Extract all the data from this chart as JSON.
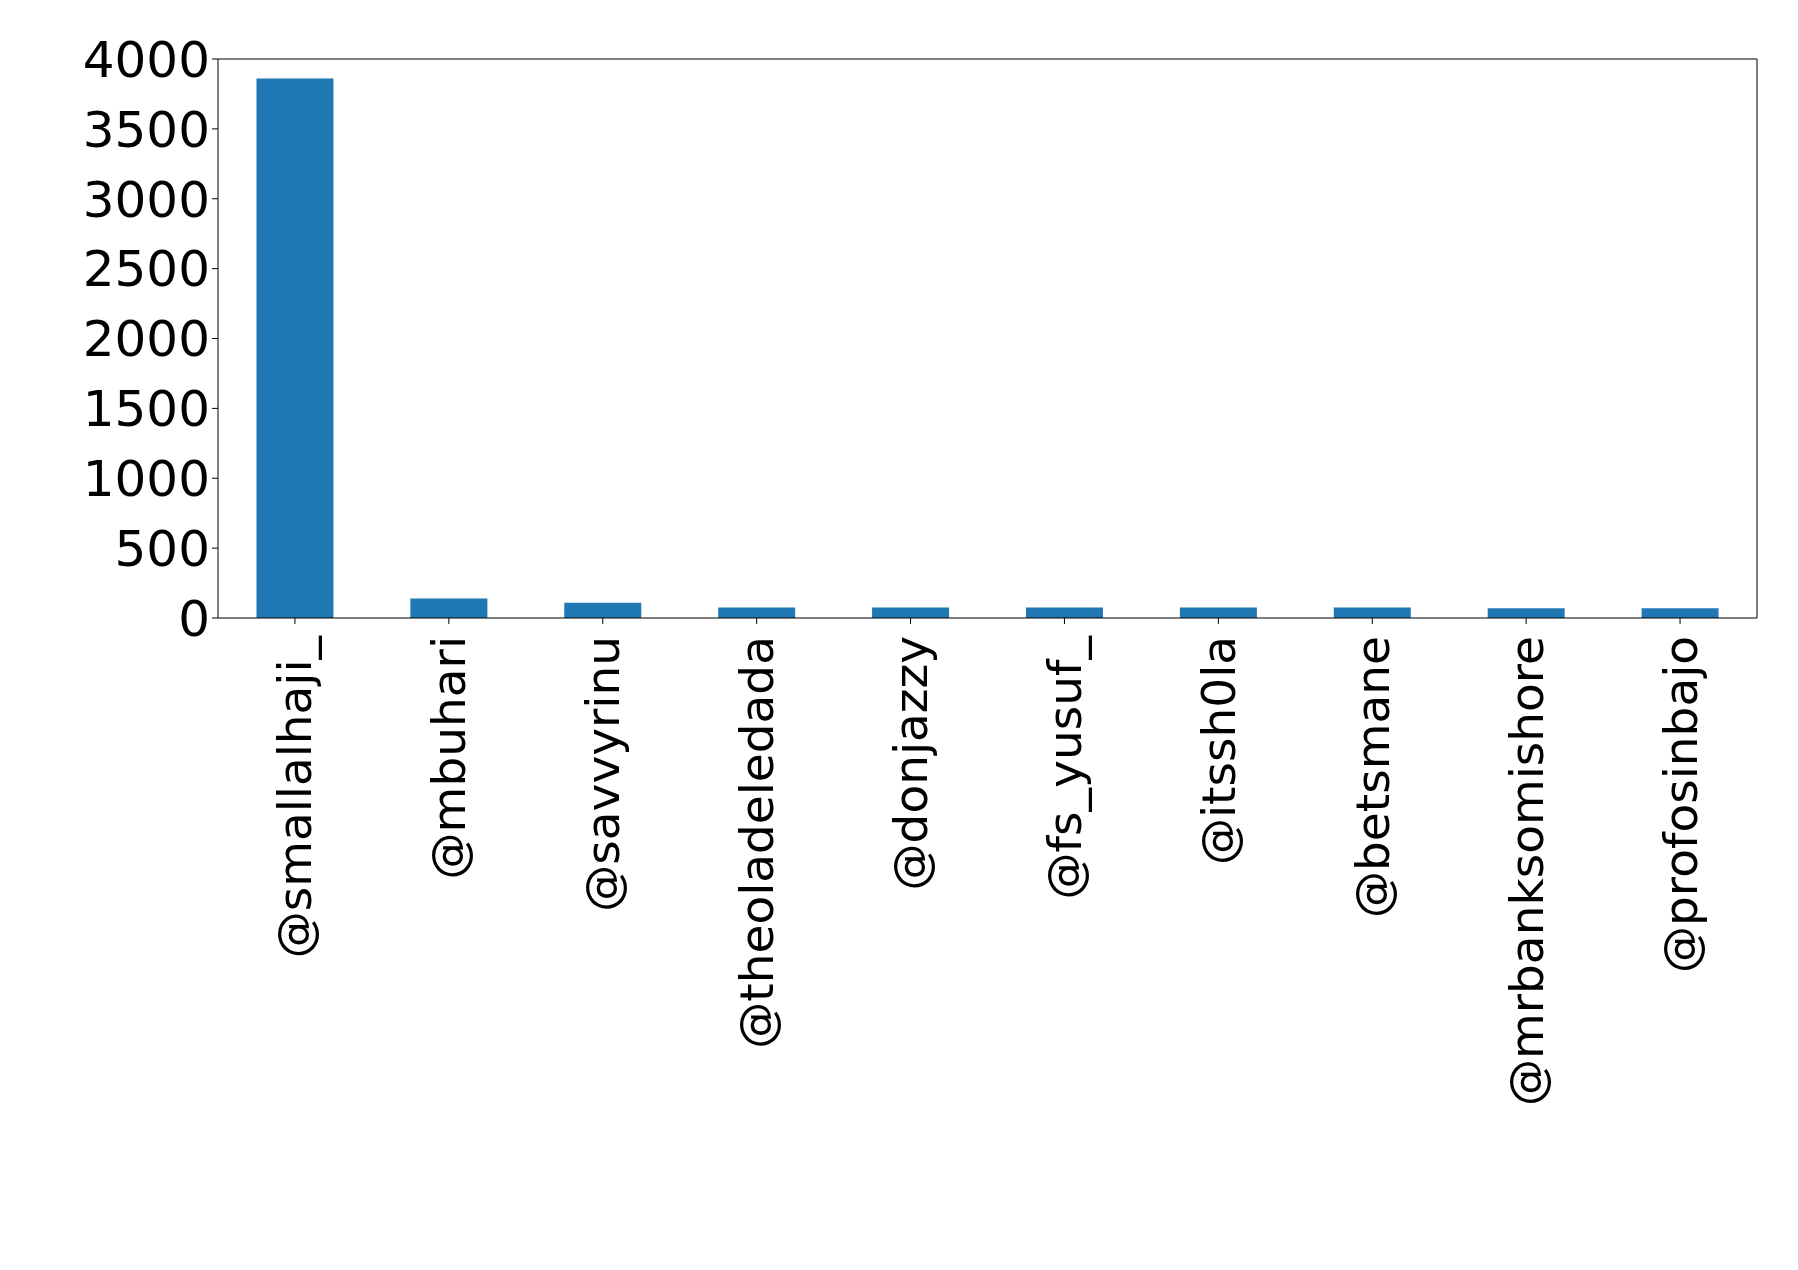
{
  "chart_data": {
    "type": "bar",
    "categories": [
      "@smallalhaji_",
      "@mbuhari",
      "@savvyrinu",
      "@theoladeledada",
      "@donjazzy",
      "@fs_yusuf_",
      "@itssh0la",
      "@betsmane",
      "@mrbanksomishore",
      "@profosinbajo"
    ],
    "values": [
      3860,
      140,
      110,
      75,
      75,
      75,
      75,
      75,
      70,
      70
    ],
    "color": "#1f77b4",
    "ylim": [
      0,
      4000
    ],
    "yticks": [
      0,
      500,
      1000,
      1500,
      2000,
      2500,
      3000,
      3500,
      4000
    ],
    "grid": false
  }
}
